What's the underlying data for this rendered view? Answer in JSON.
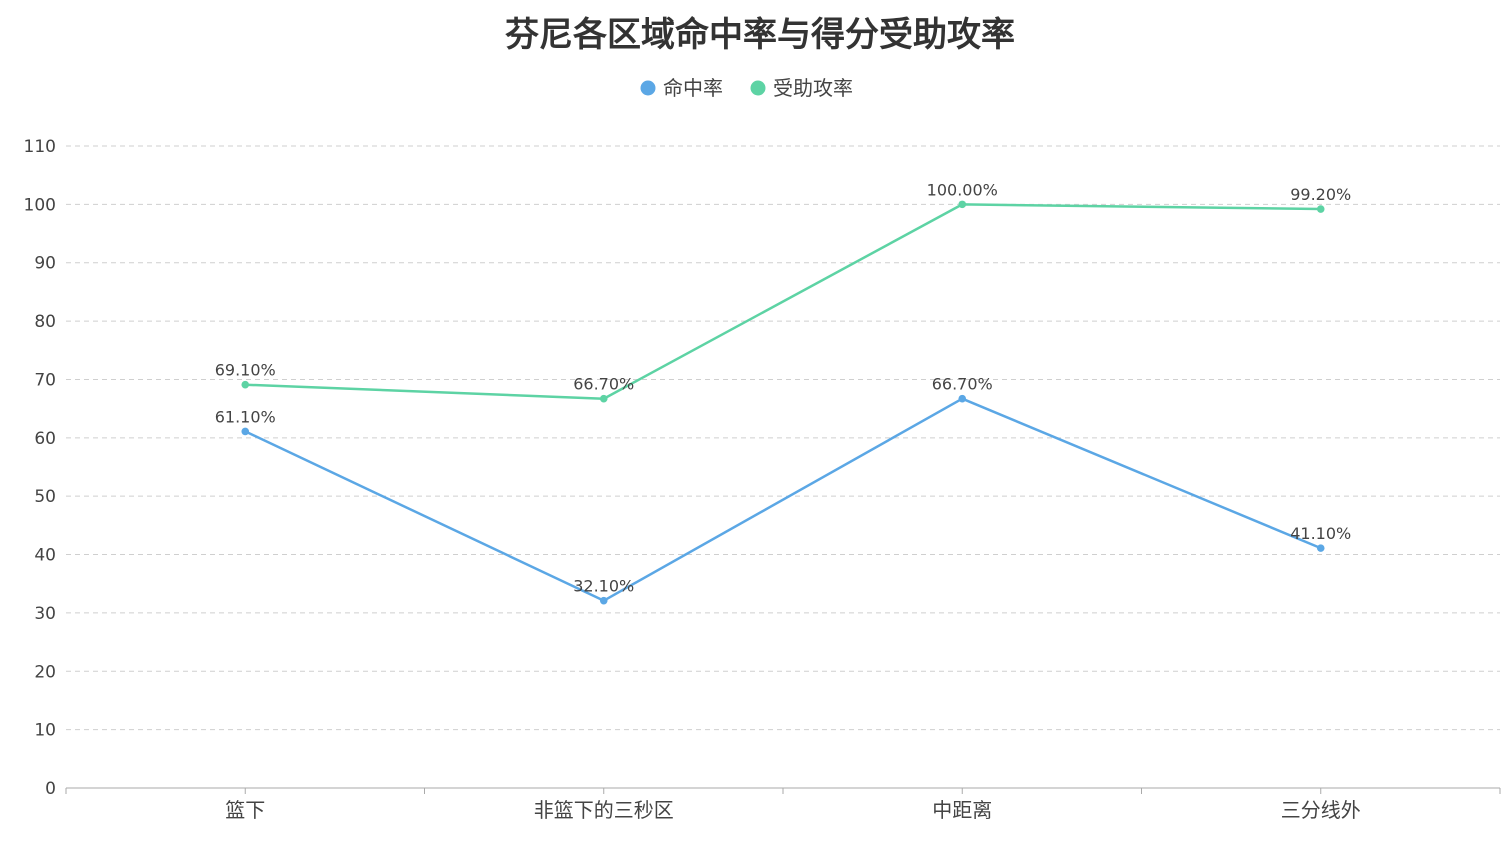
{
  "chart_data": {
    "type": "line",
    "title": "芬尼各区域命中率与得分受助攻率",
    "categories": [
      "篮下",
      "非篮下的三秒区",
      "中距离",
      "三分线外"
    ],
    "series": [
      {
        "name": "命中率",
        "color": "#5ba7e5",
        "values": [
          61.1,
          32.1,
          66.7,
          41.1
        ],
        "labels": [
          "61.10%",
          "32.10%",
          "66.70%",
          "41.10%"
        ]
      },
      {
        "name": "受助攻率",
        "color": "#5dd3a4",
        "values": [
          69.1,
          66.7,
          100.0,
          99.2
        ],
        "labels": [
          "69.10%",
          "66.70%",
          "100.00%",
          "99.20%"
        ]
      }
    ],
    "y_ticks": [
      "0",
      "10",
      "20",
      "30",
      "40",
      "50",
      "60",
      "70",
      "80",
      "90",
      "100",
      "110"
    ],
    "ylim": [
      0,
      110
    ],
    "grid": true,
    "legend_position": "top-center"
  }
}
